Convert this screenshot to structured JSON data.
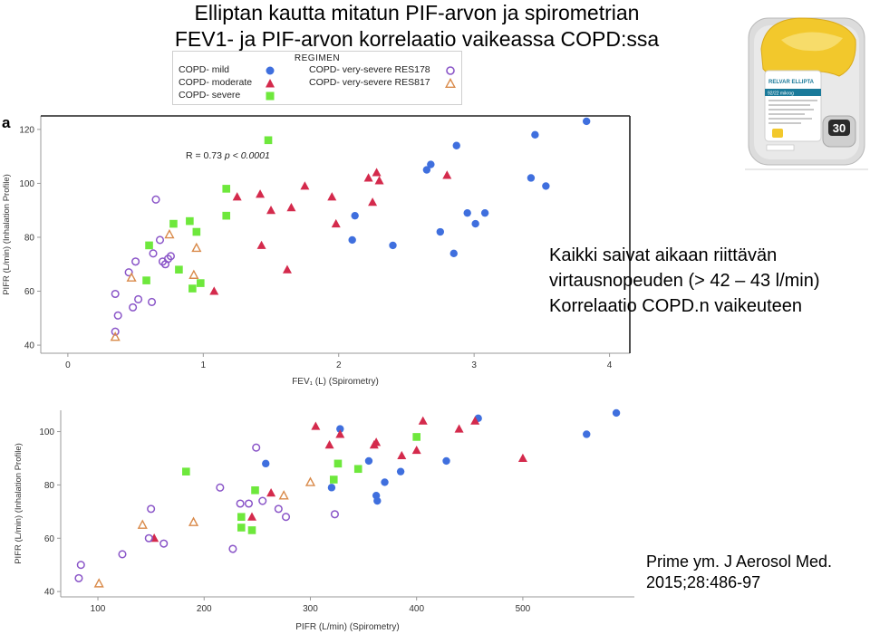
{
  "title_lines": [
    "Elliptan kautta mitatun PIF-arvon ja spirometrian",
    "FEV1- ja PIF-arvon korrelaatio vaikeassa COPD:ssa"
  ],
  "legend": {
    "title": "REGIMEN",
    "items": [
      {
        "key": "mild",
        "label": "COPD- mild",
        "marker": "circle-filled",
        "color": "#3f6fde"
      },
      {
        "key": "moderate",
        "label": "COPD- moderate",
        "marker": "triangle-filled",
        "color": "#d42a4c"
      },
      {
        "key": "severe",
        "label": "COPD- severe",
        "marker": "square-filled",
        "color": "#6ee83c"
      },
      {
        "key": "vs178",
        "label": "COPD- very-severe RES178",
        "marker": "circle-open",
        "color": "#8a55c8"
      },
      {
        "key": "vs817",
        "label": "COPD- very-severe RES817",
        "marker": "triangle-open",
        "color": "#d98a4a"
      }
    ]
  },
  "panel_label": "a",
  "notes": [
    "Kaikki saivat aikaan riittävän",
    "virtausnopeuden (> 42 – 43 l/min)",
    "Korrelaatio COPD.n vaikeuteen"
  ],
  "citation": [
    "Prime ym. J Aerosol Med.",
    "2015;28:486-97"
  ],
  "inhaler": {
    "brand": "RELVAR ELLIPTA",
    "dose_label": "92/22 mikrog",
    "counter": "30",
    "colors": {
      "body": "#d8d8d8",
      "cap": "#f2c82c",
      "label": "#ffffff",
      "accent": "#1a7a9a"
    }
  },
  "chart_data": [
    {
      "type": "scatter",
      "annotation": "R = 0.73   p < 0.0001",
      "annotation_parts": {
        "r": "R = 0.73",
        "p": "p < 0.0001"
      },
      "xlabel": "FEV₁ (L) (Spirometry)",
      "ylabel": "PIFR (L/min) (Inhalation Profile)",
      "xlim": [
        -0.2,
        4.15
      ],
      "ylim": [
        37,
        125
      ],
      "xticks": [
        0,
        1,
        2,
        3,
        4
      ],
      "yticks": [
        40,
        60,
        80,
        100,
        120
      ],
      "series": [
        {
          "name": "COPD- mild",
          "marker": "circle-filled",
          "color": "#3f6fde",
          "points": [
            [
              2.12,
              88
            ],
            [
              2.1,
              79
            ],
            [
              2.4,
              77
            ],
            [
              2.65,
              105
            ],
            [
              2.68,
              107
            ],
            [
              2.87,
              114
            ],
            [
              2.75,
              82
            ],
            [
              2.85,
              74
            ],
            [
              2.95,
              89
            ],
            [
              3.01,
              85
            ],
            [
              3.08,
              89
            ],
            [
              3.42,
              102
            ],
            [
              3.45,
              118
            ],
            [
              3.53,
              99
            ],
            [
              3.83,
              123
            ]
          ]
        },
        {
          "name": "COPD- moderate",
          "marker": "triangle-filled",
          "color": "#d42a4c",
          "points": [
            [
              1.08,
              60
            ],
            [
              1.25,
              95
            ],
            [
              1.42,
              96
            ],
            [
              1.43,
              77
            ],
            [
              1.5,
              90
            ],
            [
              1.62,
              68
            ],
            [
              1.65,
              91
            ],
            [
              1.75,
              99
            ],
            [
              1.95,
              95
            ],
            [
              1.98,
              85
            ],
            [
              2.22,
              102
            ],
            [
              2.25,
              93
            ],
            [
              2.28,
              104
            ],
            [
              2.3,
              101
            ],
            [
              2.8,
              103
            ]
          ]
        },
        {
          "name": "COPD- severe",
          "marker": "square-filled",
          "color": "#6ee83c",
          "points": [
            [
              0.58,
              64
            ],
            [
              0.6,
              77
            ],
            [
              0.78,
              85
            ],
            [
              0.82,
              68
            ],
            [
              0.9,
              86
            ],
            [
              0.95,
              82
            ],
            [
              0.98,
              63
            ],
            [
              0.92,
              61
            ],
            [
              1.17,
              98
            ],
            [
              1.17,
              88
            ],
            [
              1.48,
              116
            ]
          ]
        },
        {
          "name": "COPD- very-severe RES178",
          "marker": "circle-open",
          "color": "#8a55c8",
          "points": [
            [
              0.35,
              59
            ],
            [
              0.35,
              45
            ],
            [
              0.37,
              51
            ],
            [
              0.45,
              67
            ],
            [
              0.48,
              54
            ],
            [
              0.5,
              71
            ],
            [
              0.52,
              57
            ],
            [
              0.62,
              56
            ],
            [
              0.63,
              74
            ],
            [
              0.65,
              94
            ],
            [
              0.68,
              79
            ],
            [
              0.7,
              71
            ],
            [
              0.72,
              70
            ],
            [
              0.74,
              72
            ],
            [
              0.76,
              73
            ]
          ]
        },
        {
          "name": "COPD- very-severe RES817",
          "marker": "triangle-open",
          "color": "#d98a4a",
          "points": [
            [
              0.35,
              43
            ],
            [
              0.47,
              65
            ],
            [
              0.75,
              81
            ],
            [
              0.93,
              66
            ],
            [
              0.95,
              76
            ]
          ]
        }
      ]
    },
    {
      "type": "scatter",
      "xlabel": "PIFR (L/min) (Spirometry)",
      "ylabel": "PIFR (L/min) (Inhalation Profile)",
      "xlim": [
        65,
        605
      ],
      "ylim": [
        38,
        108
      ],
      "xticks": [
        100,
        200,
        300,
        400,
        500
      ],
      "yticks": [
        40,
        60,
        80,
        100
      ],
      "series": [
        {
          "name": "COPD- mild",
          "marker": "circle-filled",
          "color": "#3f6fde",
          "points": [
            [
              258,
              88
            ],
            [
              320,
              79
            ],
            [
              328,
              101
            ],
            [
              355,
              89
            ],
            [
              362,
              76
            ],
            [
              363,
              74
            ],
            [
              370,
              81
            ],
            [
              385,
              85
            ],
            [
              428,
              89
            ],
            [
              458,
              105
            ],
            [
              560,
              99
            ],
            [
              588,
              107
            ]
          ]
        },
        {
          "name": "COPD- moderate",
          "marker": "triangle-filled",
          "color": "#d42a4c",
          "points": [
            [
              153,
              60
            ],
            [
              245,
              68
            ],
            [
              263,
              77
            ],
            [
              305,
              102
            ],
            [
              318,
              95
            ],
            [
              328,
              99
            ],
            [
              360,
              95
            ],
            [
              362,
              96
            ],
            [
              386,
              91
            ],
            [
              400,
              93
            ],
            [
              406,
              104
            ],
            [
              440,
              101
            ],
            [
              455,
              104
            ],
            [
              500,
              90
            ]
          ]
        },
        {
          "name": "COPD- severe",
          "marker": "square-filled",
          "color": "#6ee83c",
          "points": [
            [
              183,
              85
            ],
            [
              235,
              64
            ],
            [
              235,
              68
            ],
            [
              245,
              63
            ],
            [
              248,
              78
            ],
            [
              322,
              82
            ],
            [
              326,
              88
            ],
            [
              345,
              86
            ],
            [
              400,
              98
            ]
          ]
        },
        {
          "name": "COPD- very-severe RES178",
          "marker": "circle-open",
          "color": "#8a55c8",
          "points": [
            [
              82,
              45
            ],
            [
              84,
              50
            ],
            [
              123,
              54
            ],
            [
              148,
              60
            ],
            [
              150,
              71
            ],
            [
              162,
              58
            ],
            [
              215,
              79
            ],
            [
              227,
              56
            ],
            [
              234,
              73
            ],
            [
              242,
              73
            ],
            [
              249,
              94
            ],
            [
              255,
              74
            ],
            [
              270,
              71
            ],
            [
              277,
              68
            ],
            [
              323,
              69
            ]
          ]
        },
        {
          "name": "COPD- very-severe RES817",
          "marker": "triangle-open",
          "color": "#d98a4a",
          "points": [
            [
              101,
              43
            ],
            [
              142,
              65
            ],
            [
              190,
              66
            ],
            [
              275,
              76
            ],
            [
              300,
              81
            ]
          ]
        }
      ]
    }
  ]
}
